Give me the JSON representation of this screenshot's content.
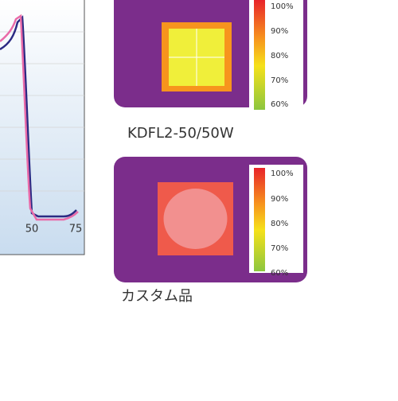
{
  "left_chart": {
    "xtick_labels": [
      "50",
      "75"
    ]
  },
  "panels": [
    {
      "caption": "KDFL2-50/50W",
      "scale_labels": [
        "100%",
        "90%",
        "80%",
        "70%",
        "60%"
      ]
    },
    {
      "caption": "カスタム品",
      "scale_labels": [
        "100%",
        "90%",
        "80%",
        "70%",
        "60%"
      ]
    }
  ]
}
